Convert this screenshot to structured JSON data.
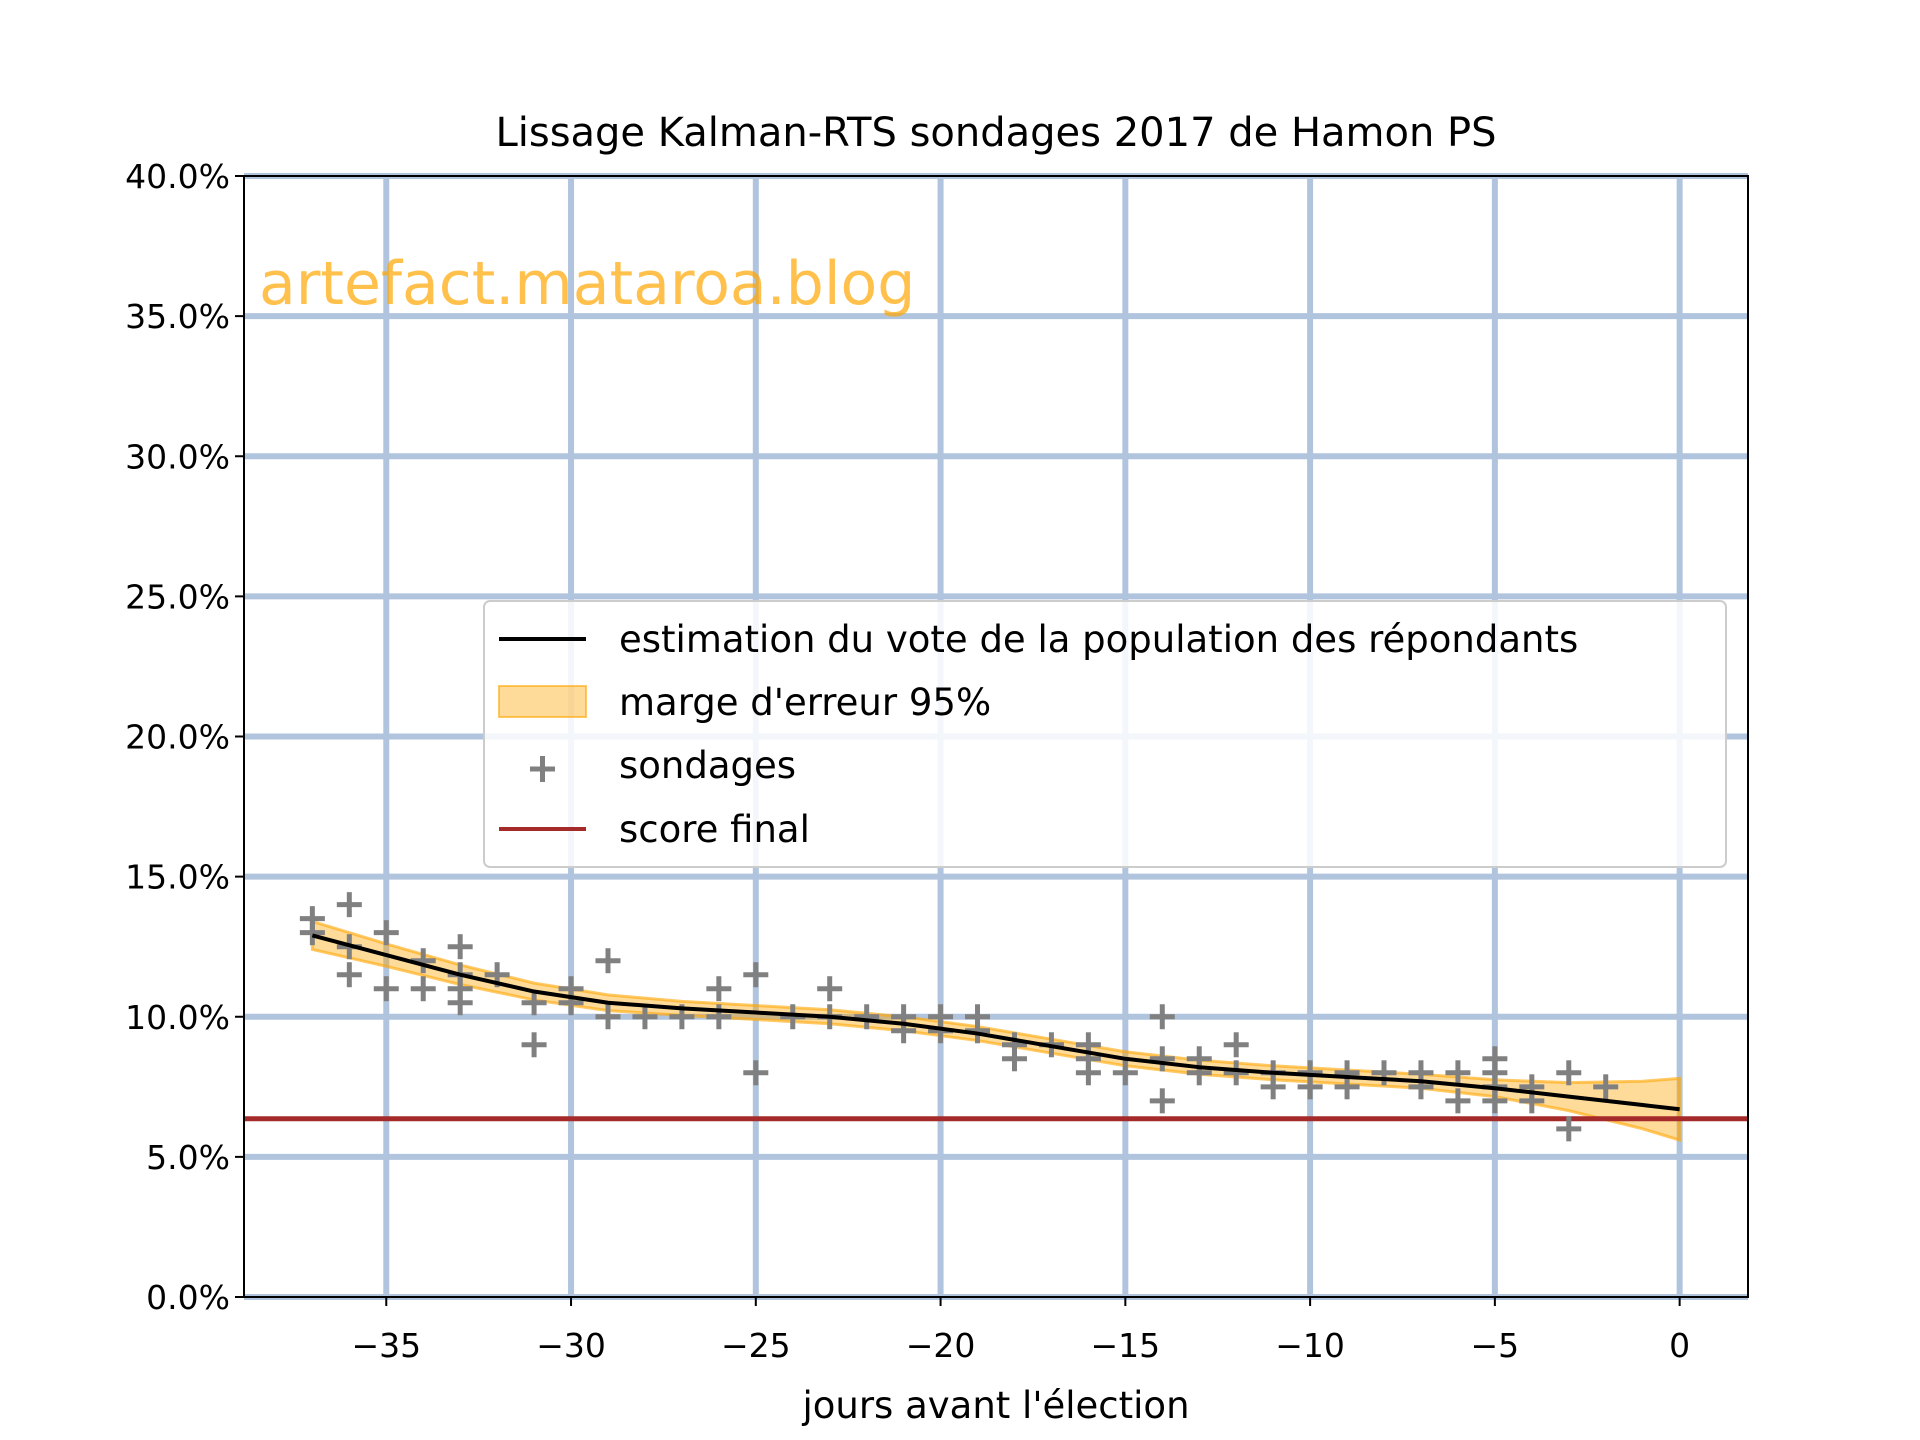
{
  "chart_data": {
    "type": "line",
    "title": "Lissage Kalman-RTS sondages 2017 de Hamon PS",
    "xlabel": "jours avant l'élection",
    "ylabel": "",
    "watermark": "artefact.mataroa.blog",
    "xlim": [
      -38.85,
      1.85
    ],
    "ylim": [
      0,
      40
    ],
    "xticks": [
      -35,
      -30,
      -25,
      -20,
      -15,
      -10,
      -5,
      0
    ],
    "xtick_labels": [
      "−35",
      "−30",
      "−25",
      "−20",
      "−15",
      "−10",
      "−5",
      "0"
    ],
    "yticks": [
      0,
      5,
      10,
      15,
      20,
      25,
      30,
      35,
      40
    ],
    "ytick_labels": [
      "0.0%",
      "5.0%",
      "10.0%",
      "15.0%",
      "20.0%",
      "25.0%",
      "30.0%",
      "35.0%",
      "40.0%"
    ],
    "grid": true,
    "legend_placement": "center-right",
    "colors": {
      "estimate": "#000000",
      "band": "#ffa500",
      "polls": "#808080",
      "final": "#a52a2a",
      "grid": "#b0c4de"
    },
    "legend": [
      {
        "key": "estimate",
        "label": "estimation du vote de la population des répondants"
      },
      {
        "key": "band",
        "label": "marge d'erreur 95%"
      },
      {
        "key": "polls",
        "label": "sondages"
      },
      {
        "key": "final",
        "label": "score final"
      }
    ],
    "estimate": {
      "x": [
        -37,
        -35,
        -33,
        -31,
        -29,
        -27,
        -25,
        -23,
        -21,
        -19,
        -17,
        -15,
        -13,
        -11,
        -9,
        -7,
        -5,
        -3,
        -1,
        0
      ],
      "y": [
        12.9,
        12.2,
        11.5,
        10.9,
        10.5,
        10.3,
        10.15,
        10.0,
        9.75,
        9.4,
        8.95,
        8.5,
        8.2,
        8.0,
        7.85,
        7.7,
        7.45,
        7.15,
        6.85,
        6.7
      ],
      "halfwidth": [
        0.5,
        0.4,
        0.35,
        0.3,
        0.28,
        0.25,
        0.25,
        0.25,
        0.25,
        0.25,
        0.25,
        0.25,
        0.25,
        0.25,
        0.25,
        0.25,
        0.3,
        0.5,
        0.85,
        1.1
      ]
    },
    "final_score": 6.36,
    "polls": [
      [
        -37,
        13.5
      ],
      [
        -37,
        13.0
      ],
      [
        -36,
        14.0
      ],
      [
        -36,
        12.5
      ],
      [
        -36,
        11.5
      ],
      [
        -35,
        13.0
      ],
      [
        -35,
        11.0
      ],
      [
        -34,
        12.0
      ],
      [
        -34,
        11.0
      ],
      [
        -33,
        12.5
      ],
      [
        -33,
        11.5
      ],
      [
        -33,
        11.0
      ],
      [
        -33,
        10.5
      ],
      [
        -32,
        11.5
      ],
      [
        -31,
        10.5
      ],
      [
        -31,
        9.0
      ],
      [
        -30,
        11.0
      ],
      [
        -30,
        10.5
      ],
      [
        -29,
        12.0
      ],
      [
        -29,
        10.0
      ],
      [
        -28,
        10.0
      ],
      [
        -27,
        10.0
      ],
      [
        -26,
        11.0
      ],
      [
        -26,
        10.0
      ],
      [
        -25,
        11.5
      ],
      [
        -25,
        8.0
      ],
      [
        -24,
        10.0
      ],
      [
        -23,
        11.0
      ],
      [
        -23,
        10.0
      ],
      [
        -22,
        10.0
      ],
      [
        -21,
        10.0
      ],
      [
        -21,
        9.5
      ],
      [
        -20,
        10.0
      ],
      [
        -20,
        9.5
      ],
      [
        -19,
        10.0
      ],
      [
        -19,
        9.5
      ],
      [
        -18,
        9.0
      ],
      [
        -18,
        8.5
      ],
      [
        -17,
        9.0
      ],
      [
        -16,
        9.0
      ],
      [
        -16,
        8.5
      ],
      [
        -16,
        8.0
      ],
      [
        -15,
        8.0
      ],
      [
        -14,
        10.0
      ],
      [
        -14,
        8.5
      ],
      [
        -14,
        7.0
      ],
      [
        -13,
        8.5
      ],
      [
        -13,
        8.0
      ],
      [
        -12,
        9.0
      ],
      [
        -12,
        8.0
      ],
      [
        -11,
        8.0
      ],
      [
        -11,
        7.5
      ],
      [
        -10,
        8.0
      ],
      [
        -10,
        7.5
      ],
      [
        -9,
        8.0
      ],
      [
        -9,
        7.5
      ],
      [
        -8,
        8.0
      ],
      [
        -7,
        8.0
      ],
      [
        -7,
        7.5
      ],
      [
        -6,
        8.0
      ],
      [
        -6,
        7.0
      ],
      [
        -5,
        8.5
      ],
      [
        -5,
        8.0
      ],
      [
        -5,
        7.5
      ],
      [
        -5,
        7.0
      ],
      [
        -4,
        7.5
      ],
      [
        -4,
        7.0
      ],
      [
        -3,
        8.0
      ],
      [
        -3,
        6.0
      ],
      [
        -2,
        7.5
      ]
    ]
  }
}
